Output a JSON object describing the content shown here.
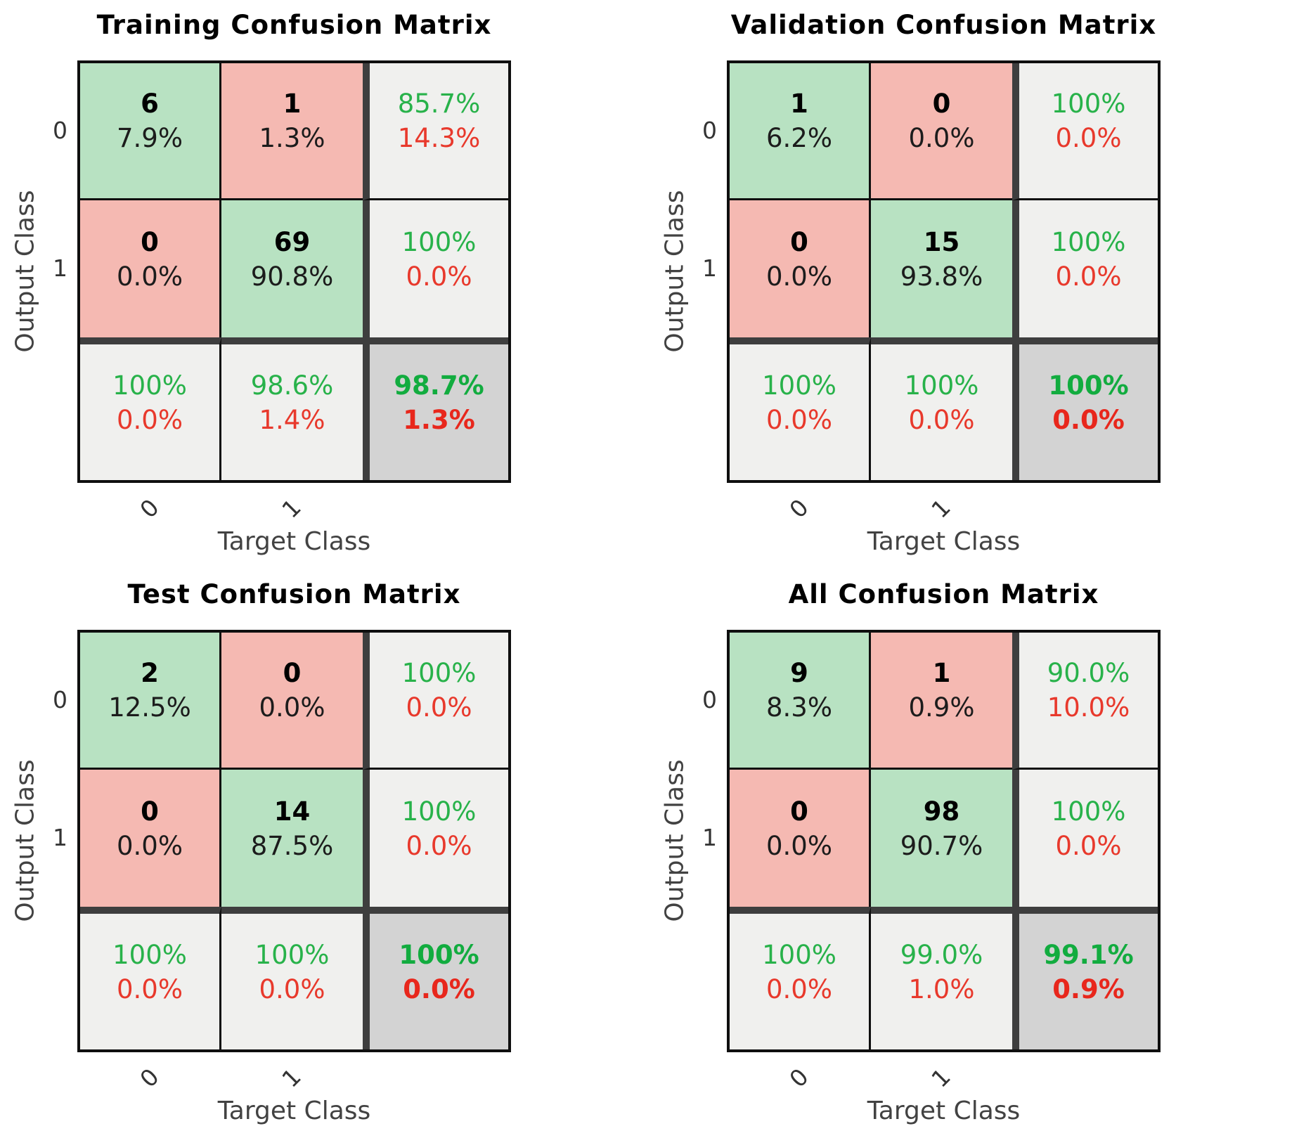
{
  "colors": {
    "correct_cell_bg": "#b8e2c2",
    "incorrect_cell_bg": "#f5b9b2",
    "summary_cell_bg": "#f0f0ee",
    "total_cell_bg": "#d3d3d3",
    "grid_line": "#0f0f0f",
    "block_separator": "#3e3e3e",
    "positive_text": "#28b24a",
    "negative_text": "#e8392c",
    "axis_text": "#424242"
  },
  "matrices": [
    {
      "id": "training",
      "title": "Training Confusion Matrix",
      "xlabel": "Target Class",
      "ylabel": "Output Class",
      "xticks": [
        "0",
        "1"
      ],
      "yticks": [
        "0",
        "1"
      ],
      "cells": [
        {
          "v": "6",
          "p": "7.9%"
        },
        {
          "v": "1",
          "p": "1.3%"
        },
        {
          "v": "85.7%",
          "p": "14.3%"
        },
        {
          "v": "0",
          "p": "0.0%"
        },
        {
          "v": "69",
          "p": "90.8%"
        },
        {
          "v": "100%",
          "p": "0.0%"
        },
        {
          "v": "100%",
          "p": "0.0%"
        },
        {
          "v": "98.6%",
          "p": "1.4%"
        },
        {
          "v": "98.7%",
          "p": "1.3%"
        }
      ]
    },
    {
      "id": "validation",
      "title": "Validation Confusion Matrix",
      "xlabel": "Target Class",
      "ylabel": "Output Class",
      "xticks": [
        "0",
        "1"
      ],
      "yticks": [
        "0",
        "1"
      ],
      "cells": [
        {
          "v": "1",
          "p": "6.2%"
        },
        {
          "v": "0",
          "p": "0.0%"
        },
        {
          "v": "100%",
          "p": "0.0%"
        },
        {
          "v": "0",
          "p": "0.0%"
        },
        {
          "v": "15",
          "p": "93.8%"
        },
        {
          "v": "100%",
          "p": "0.0%"
        },
        {
          "v": "100%",
          "p": "0.0%"
        },
        {
          "v": "100%",
          "p": "0.0%"
        },
        {
          "v": "100%",
          "p": "0.0%"
        }
      ]
    },
    {
      "id": "test",
      "title": "Test Confusion Matrix",
      "xlabel": "Target Class",
      "ylabel": "Output Class",
      "xticks": [
        "0",
        "1"
      ],
      "yticks": [
        "0",
        "1"
      ],
      "cells": [
        {
          "v": "2",
          "p": "12.5%"
        },
        {
          "v": "0",
          "p": "0.0%"
        },
        {
          "v": "100%",
          "p": "0.0%"
        },
        {
          "v": "0",
          "p": "0.0%"
        },
        {
          "v": "14",
          "p": "87.5%"
        },
        {
          "v": "100%",
          "p": "0.0%"
        },
        {
          "v": "100%",
          "p": "0.0%"
        },
        {
          "v": "100%",
          "p": "0.0%"
        },
        {
          "v": "100%",
          "p": "0.0%"
        }
      ]
    },
    {
      "id": "all",
      "title": "All Confusion Matrix",
      "xlabel": "Target Class",
      "ylabel": "Output Class",
      "xticks": [
        "0",
        "1"
      ],
      "yticks": [
        "0",
        "1"
      ],
      "cells": [
        {
          "v": "9",
          "p": "8.3%"
        },
        {
          "v": "1",
          "p": "0.9%"
        },
        {
          "v": "90.0%",
          "p": "10.0%"
        },
        {
          "v": "0",
          "p": "0.0%"
        },
        {
          "v": "98",
          "p": "90.7%"
        },
        {
          "v": "100%",
          "p": "0.0%"
        },
        {
          "v": "100%",
          "p": "0.0%"
        },
        {
          "v": "99.0%",
          "p": "1.0%"
        },
        {
          "v": "99.1%",
          "p": "0.9%"
        }
      ]
    }
  ],
  "chart_data": [
    {
      "type": "heatmap",
      "title": "Training Confusion Matrix",
      "xlabel": "Target Class",
      "ylabel": "Output Class",
      "classes": [
        "0",
        "1"
      ],
      "counts": [
        [
          6,
          1
        ],
        [
          0,
          69
        ]
      ],
      "count_pct_of_total": [
        [
          7.9,
          1.3
        ],
        [
          0.0,
          90.8
        ]
      ],
      "row_success_pct": [
        85.7,
        100
      ],
      "row_error_pct": [
        14.3,
        0.0
      ],
      "col_success_pct": [
        100,
        98.6
      ],
      "col_error_pct": [
        0.0,
        1.4
      ],
      "overall_accuracy_pct": 98.7,
      "overall_error_pct": 1.3
    },
    {
      "type": "heatmap",
      "title": "Validation Confusion Matrix",
      "xlabel": "Target Class",
      "ylabel": "Output Class",
      "classes": [
        "0",
        "1"
      ],
      "counts": [
        [
          1,
          0
        ],
        [
          0,
          15
        ]
      ],
      "count_pct_of_total": [
        [
          6.2,
          0.0
        ],
        [
          0.0,
          93.8
        ]
      ],
      "row_success_pct": [
        100,
        100
      ],
      "row_error_pct": [
        0.0,
        0.0
      ],
      "col_success_pct": [
        100,
        100
      ],
      "col_error_pct": [
        0.0,
        0.0
      ],
      "overall_accuracy_pct": 100,
      "overall_error_pct": 0.0
    },
    {
      "type": "heatmap",
      "title": "Test Confusion Matrix",
      "xlabel": "Target Class",
      "ylabel": "Output Class",
      "classes": [
        "0",
        "1"
      ],
      "counts": [
        [
          2,
          0
        ],
        [
          0,
          14
        ]
      ],
      "count_pct_of_total": [
        [
          12.5,
          0.0
        ],
        [
          0.0,
          87.5
        ]
      ],
      "row_success_pct": [
        100,
        100
      ],
      "row_error_pct": [
        0.0,
        0.0
      ],
      "col_success_pct": [
        100,
        100
      ],
      "col_error_pct": [
        0.0,
        0.0
      ],
      "overall_accuracy_pct": 100,
      "overall_error_pct": 0.0
    },
    {
      "type": "heatmap",
      "title": "All Confusion Matrix",
      "xlabel": "Target Class",
      "ylabel": "Output Class",
      "classes": [
        "0",
        "1"
      ],
      "counts": [
        [
          9,
          1
        ],
        [
          0,
          98
        ]
      ],
      "count_pct_of_total": [
        [
          8.3,
          0.9
        ],
        [
          0.0,
          90.7
        ]
      ],
      "row_success_pct": [
        90.0,
        100
      ],
      "row_error_pct": [
        10.0,
        0.0
      ],
      "col_success_pct": [
        100,
        99.0
      ],
      "col_error_pct": [
        0.0,
        1.0
      ],
      "overall_accuracy_pct": 99.1,
      "overall_error_pct": 0.9
    }
  ]
}
